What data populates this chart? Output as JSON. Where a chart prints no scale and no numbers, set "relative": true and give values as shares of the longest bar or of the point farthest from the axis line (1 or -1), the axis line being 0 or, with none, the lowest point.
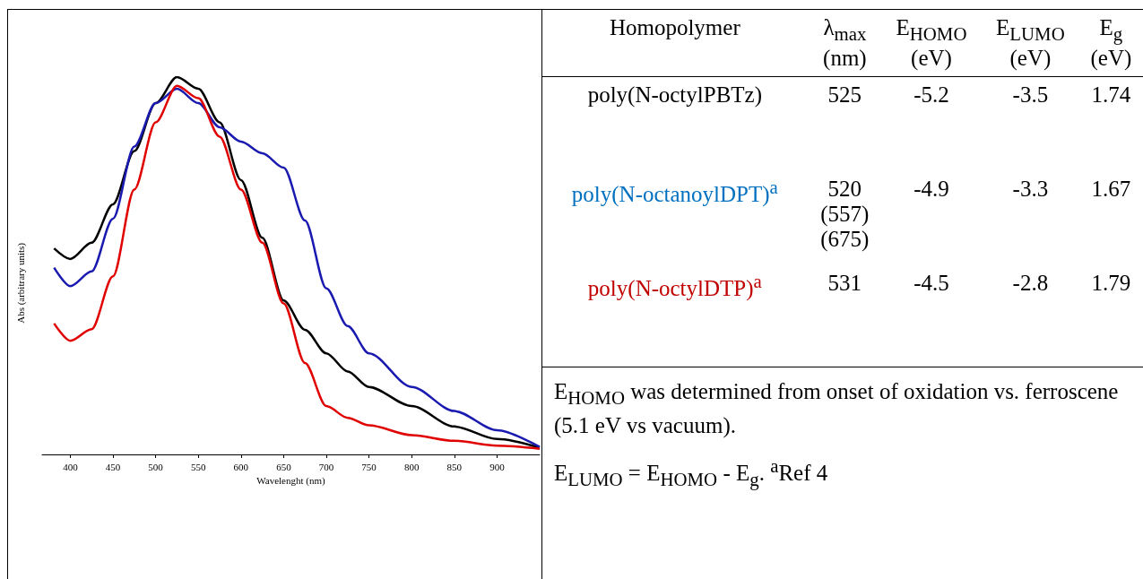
{
  "chart_data": [
    {
      "type": "line",
      "xlabel": "Wavelenght (nm)",
      "ylabel": "Abs (arbitrary units)",
      "relative": true,
      "tick_labels": "x",
      "grid": false,
      "marker": "none",
      "line_style": "solid",
      "xlim": [
        367,
        950
      ],
      "xticks": [
        400,
        450,
        500,
        550,
        600,
        650,
        700,
        750,
        800,
        850,
        900
      ],
      "x": [
        381,
        400,
        425,
        450,
        475,
        500,
        525,
        550,
        575,
        600,
        625,
        650,
        675,
        700,
        725,
        750,
        800,
        850,
        900,
        950
      ],
      "series": [
        {
          "color": "#000000",
          "values": [
            0.546,
            0.518,
            0.561,
            0.663,
            0.804,
            0.931,
            1.0,
            0.969,
            0.88,
            0.727,
            0.574,
            0.408,
            0.33,
            0.268,
            0.22,
            0.179,
            0.128,
            0.074,
            0.041,
            0.018
          ]
        },
        {
          "color": "#1a1ab0",
          "values": [
            0.495,
            0.446,
            0.485,
            0.625,
            0.816,
            0.931,
            0.969,
            0.931,
            0.867,
            0.829,
            0.798,
            0.76,
            0.62,
            0.44,
            0.34,
            0.268,
            0.179,
            0.115,
            0.064,
            0.02
          ]
        },
        {
          "color": "#e00000",
          "values": [
            0.347,
            0.301,
            0.332,
            0.472,
            0.702,
            0.88,
            0.977,
            0.944,
            0.842,
            0.702,
            0.561,
            0.4,
            0.242,
            0.128,
            0.097,
            0.077,
            0.051,
            0.036,
            0.023,
            0.015
          ]
        }
      ]
    },
    {
      "type": "other",
      "categories": [
        "Homopolymer",
        "λ$_{max}$ (nm)",
        "E$_{HOMO}$ (eV)",
        "E$_{LUMO}$ (eV)",
        "E$_{g}$ (eV)"
      ],
      "y_categories": [
        "poly(N-octylPBTz)",
        "poly(N-octanoylDPT)$^{a}$",
        "poly(N-octylDTP)$^{a}$"
      ],
      "colors": [
        "#000000",
        "#0070c0",
        "#c00000"
      ],
      "cell_labels": [
        [
          "525",
          "-5.2",
          "-3.5",
          "1.74"
        ],
        [
          "520 (557) (675)",
          "-4.9",
          "-3.3",
          "1.67"
        ],
        [
          "531",
          "-4.5",
          "-2.8",
          "1.79"
        ]
      ],
      "annotations": [
        "E$_{HOMO}$ was determined from onset of oxidation vs. ferroscene (5.1 eV vs vacuum).",
        "E$_{LUMO}$ = E$_{HOMO}$ - E$_{g}$.  $^{a}$Ref 4"
      ]
    }
  ]
}
